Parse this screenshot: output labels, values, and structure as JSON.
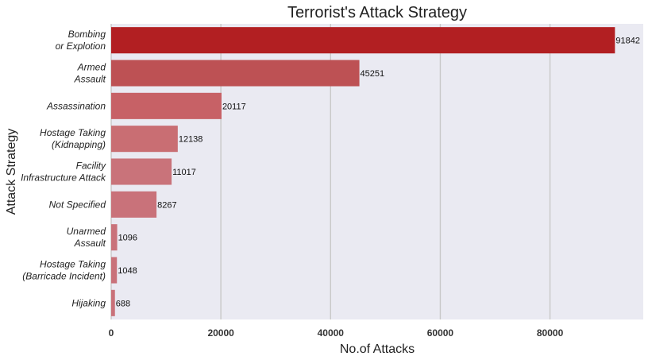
{
  "chart_data": {
    "type": "bar",
    "orientation": "horizontal",
    "title": "Terrorist's Attack Strategy",
    "xlabel": "No.of Attacks",
    "ylabel": "Attack Strategy",
    "xlim": [
      0,
      97000
    ],
    "x_ticks": [
      "0",
      "20000",
      "40000",
      "60000",
      "80000"
    ],
    "x_tick_values": [
      0,
      20000,
      40000,
      60000,
      80000
    ],
    "grid": "vertical",
    "categories": [
      [
        "Bombing",
        "or Explotion"
      ],
      [
        "Armed",
        "Assault"
      ],
      [
        "Assassination"
      ],
      [
        "Hostage Taking",
        "(Kidnapping)"
      ],
      [
        "Facility",
        "Infrastructure Attack"
      ],
      [
        "Not Specified"
      ],
      [
        "Unarmed",
        "Assault"
      ],
      [
        "Hostage Taking",
        "(Barricade Incident)"
      ],
      [
        "Hijaking"
      ]
    ],
    "values": [
      91842,
      45251,
      20117,
      12138,
      11017,
      8267,
      1096,
      1048,
      688
    ],
    "value_labels": [
      "91842",
      "45251",
      "20117",
      "12138",
      "11017",
      "8267",
      "1096",
      "1048",
      "688"
    ],
    "colors": [
      "#b21f22",
      "#bd5154",
      "#c76166",
      "#c96e73",
      "#c9737a",
      "#c9727a",
      "#c9727a",
      "#c9727a",
      "#c9727a"
    ],
    "background": "#eaeaf2",
    "gridline_color": "#c8c8c8"
  }
}
